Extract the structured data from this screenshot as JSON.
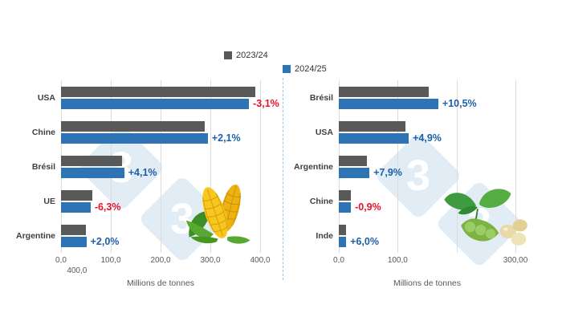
{
  "page": {
    "background": "#ffffff"
  },
  "legend": {
    "items": [
      {
        "label": "2023/24",
        "color": "#595959"
      },
      {
        "label": "2024/25",
        "color": "#2e74b5"
      }
    ]
  },
  "colors": {
    "bar_2023": "#595959",
    "bar_2024": "#2e74b5",
    "positive_pct": "#1d5fa9",
    "negative_pct": "#e8112d",
    "gridline": "#dcdcdc",
    "watermark": "#cadded",
    "separator": "#9dc3e6"
  },
  "watermark": {
    "text": "3"
  },
  "chart_data": [
    {
      "type": "bar",
      "orientation": "horizontal",
      "name": "corn",
      "icon": "corn-icon",
      "categories": [
        "USA",
        "Chine",
        "Brésil",
        "UE",
        "Argentine"
      ],
      "series": [
        {
          "name": "2023/24",
          "color": "#595959",
          "values": [
            389.7,
            288.8,
            122.0,
            63.4,
            50.0
          ]
        },
        {
          "name": "2024/25",
          "color": "#2e74b5",
          "values": [
            377.6,
            294.9,
            127.0,
            59.4,
            51.0
          ]
        }
      ],
      "change_labels": [
        {
          "text": "-3,1%",
          "color": "#e8112d"
        },
        {
          "text": "+2,1%",
          "color": "#1d5fa9"
        },
        {
          "text": "+4,1%",
          "color": "#1d5fa9"
        },
        {
          "text": "-6,3%",
          "color": "#e8112d"
        },
        {
          "text": "+2,0%",
          "color": "#1d5fa9"
        }
      ],
      "xlim": [
        0,
        400
      ],
      "gridline_values": [
        0,
        100,
        200,
        300,
        400
      ],
      "ticks": [
        {
          "value": 0,
          "label": "0,0"
        },
        {
          "value": 100,
          "label": "100,0"
        },
        {
          "value": 200,
          "label": "200,0"
        },
        {
          "value": 300,
          "label": "300,0"
        },
        {
          "value": 400,
          "label": "400,0"
        }
      ],
      "extra_tick_label": "400,0",
      "xlabel": "Millions de tonnes",
      "legend_position": "top"
    },
    {
      "type": "bar",
      "orientation": "horizontal",
      "name": "soybean",
      "icon": "soybean-icon",
      "categories": [
        "Brésil",
        "USA",
        "Argentine",
        "Chine",
        "Inde"
      ],
      "series": [
        {
          "name": "2023/24",
          "color": "#595959",
          "values": [
            153.0,
            113.3,
            48.2,
            20.8,
            11.8
          ]
        },
        {
          "name": "2024/25",
          "color": "#2e74b5",
          "values": [
            169.0,
            118.8,
            52.0,
            20.6,
            12.5
          ]
        }
      ],
      "change_labels": [
        {
          "text": "+10,5%",
          "color": "#1d5fa9"
        },
        {
          "text": "+4,9%",
          "color": "#1d5fa9"
        },
        {
          "text": "+7,9%",
          "color": "#1d5fa9"
        },
        {
          "text": "-0,9%",
          "color": "#e8112d"
        },
        {
          "text": "+6,0%",
          "color": "#1d5fa9"
        }
      ],
      "xlim": [
        0,
        300
      ],
      "gridline_values": [
        0,
        100,
        200,
        300
      ],
      "ticks": [
        {
          "value": 0,
          "label": "0,0"
        },
        {
          "value": 100,
          "label": "100,0"
        },
        {
          "value": 300,
          "label": "300,00"
        }
      ],
      "xlabel": "Millions de tonnes",
      "legend_position": "top"
    }
  ]
}
